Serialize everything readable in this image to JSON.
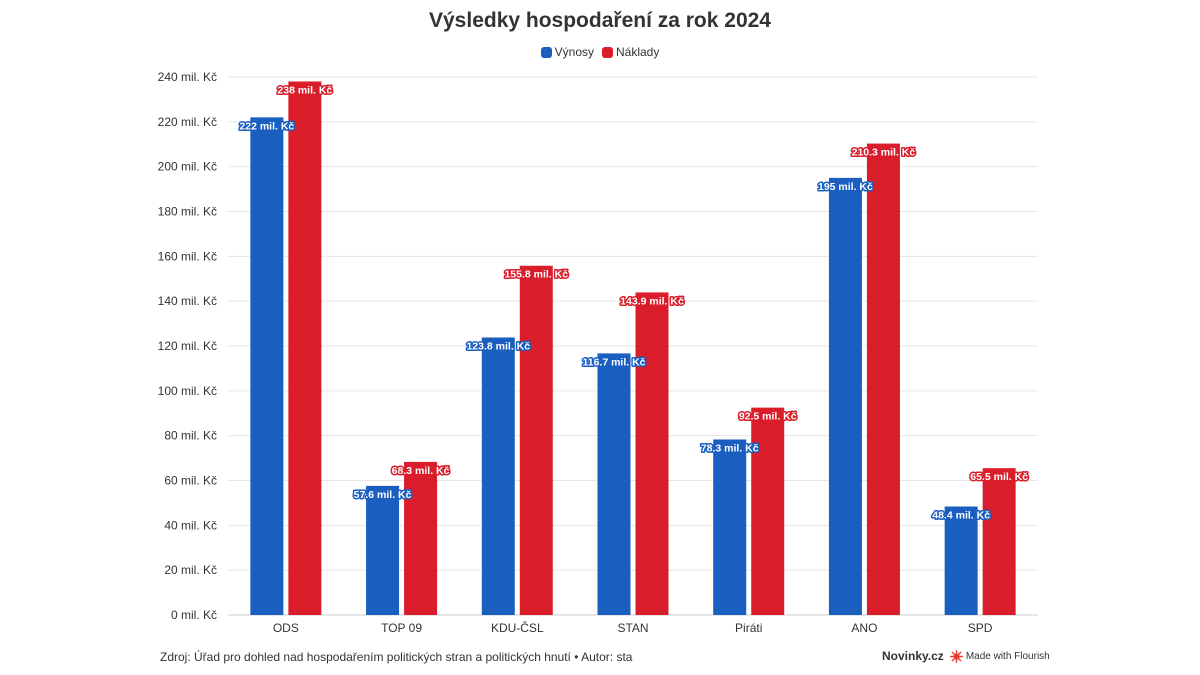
{
  "chart_data": {
    "type": "bar",
    "title": "Výsledky hospodaření za rok 2024",
    "categories": [
      "ODS",
      "TOP 09",
      "KDU-ČSL",
      "STAN",
      "Piráti",
      "ANO",
      "SPD"
    ],
    "series": [
      {
        "name": "Výnosy",
        "color": "#1a5fbf",
        "values": [
          222,
          57.6,
          123.8,
          116.7,
          78.3,
          195,
          48.4
        ],
        "labels": [
          "222 mil. Kč",
          "57.6 mil. Kč",
          "123.8 mil. Kč",
          "116.7 mil. Kč",
          "78.3 mil. Kč",
          "195 mil. Kč",
          "48.4 mil. Kč"
        ]
      },
      {
        "name": "Náklady",
        "color": "#d91d2a",
        "values": [
          238,
          68.3,
          155.8,
          143.9,
          92.5,
          210.3,
          65.5
        ],
        "labels": [
          "238 mil. Kč",
          "68.3 mil. Kč",
          "155.8 mil. Kč",
          "143.9 mil. Kč",
          "92.5 mil. Kč",
          "210.3 mil. Kč",
          "65.5 mil. Kč"
        ]
      }
    ],
    "ylim": [
      0,
      240
    ],
    "yticks": [
      0,
      20,
      40,
      60,
      80,
      100,
      120,
      140,
      160,
      180,
      200,
      220,
      240
    ],
    "ytick_labels": [
      "0 mil. Kč",
      "20 mil. Kč",
      "40 mil. Kč",
      "60 mil. Kč",
      "80 mil. Kč",
      "100 mil. Kč",
      "120 mil. Kč",
      "140 mil. Kč",
      "160 mil. Kč",
      "180 mil. Kč",
      "200 mil. Kč",
      "220 mil. Kč",
      "240 mil. Kč"
    ],
    "xlabel": "",
    "ylabel": "",
    "grid": true,
    "legend_position": "top-center"
  },
  "footer": {
    "source": "Zdroj: Úřad pro dohled nad hospodařením politických stran a politických hnutí • Autor: sta",
    "brand": "Novinky.cz",
    "made_with": "Made with Flourish"
  },
  "colors": {
    "revenue": "#1a5fbf",
    "costs": "#d91d2a",
    "grid": "#e6e6e6",
    "text": "#333333"
  }
}
